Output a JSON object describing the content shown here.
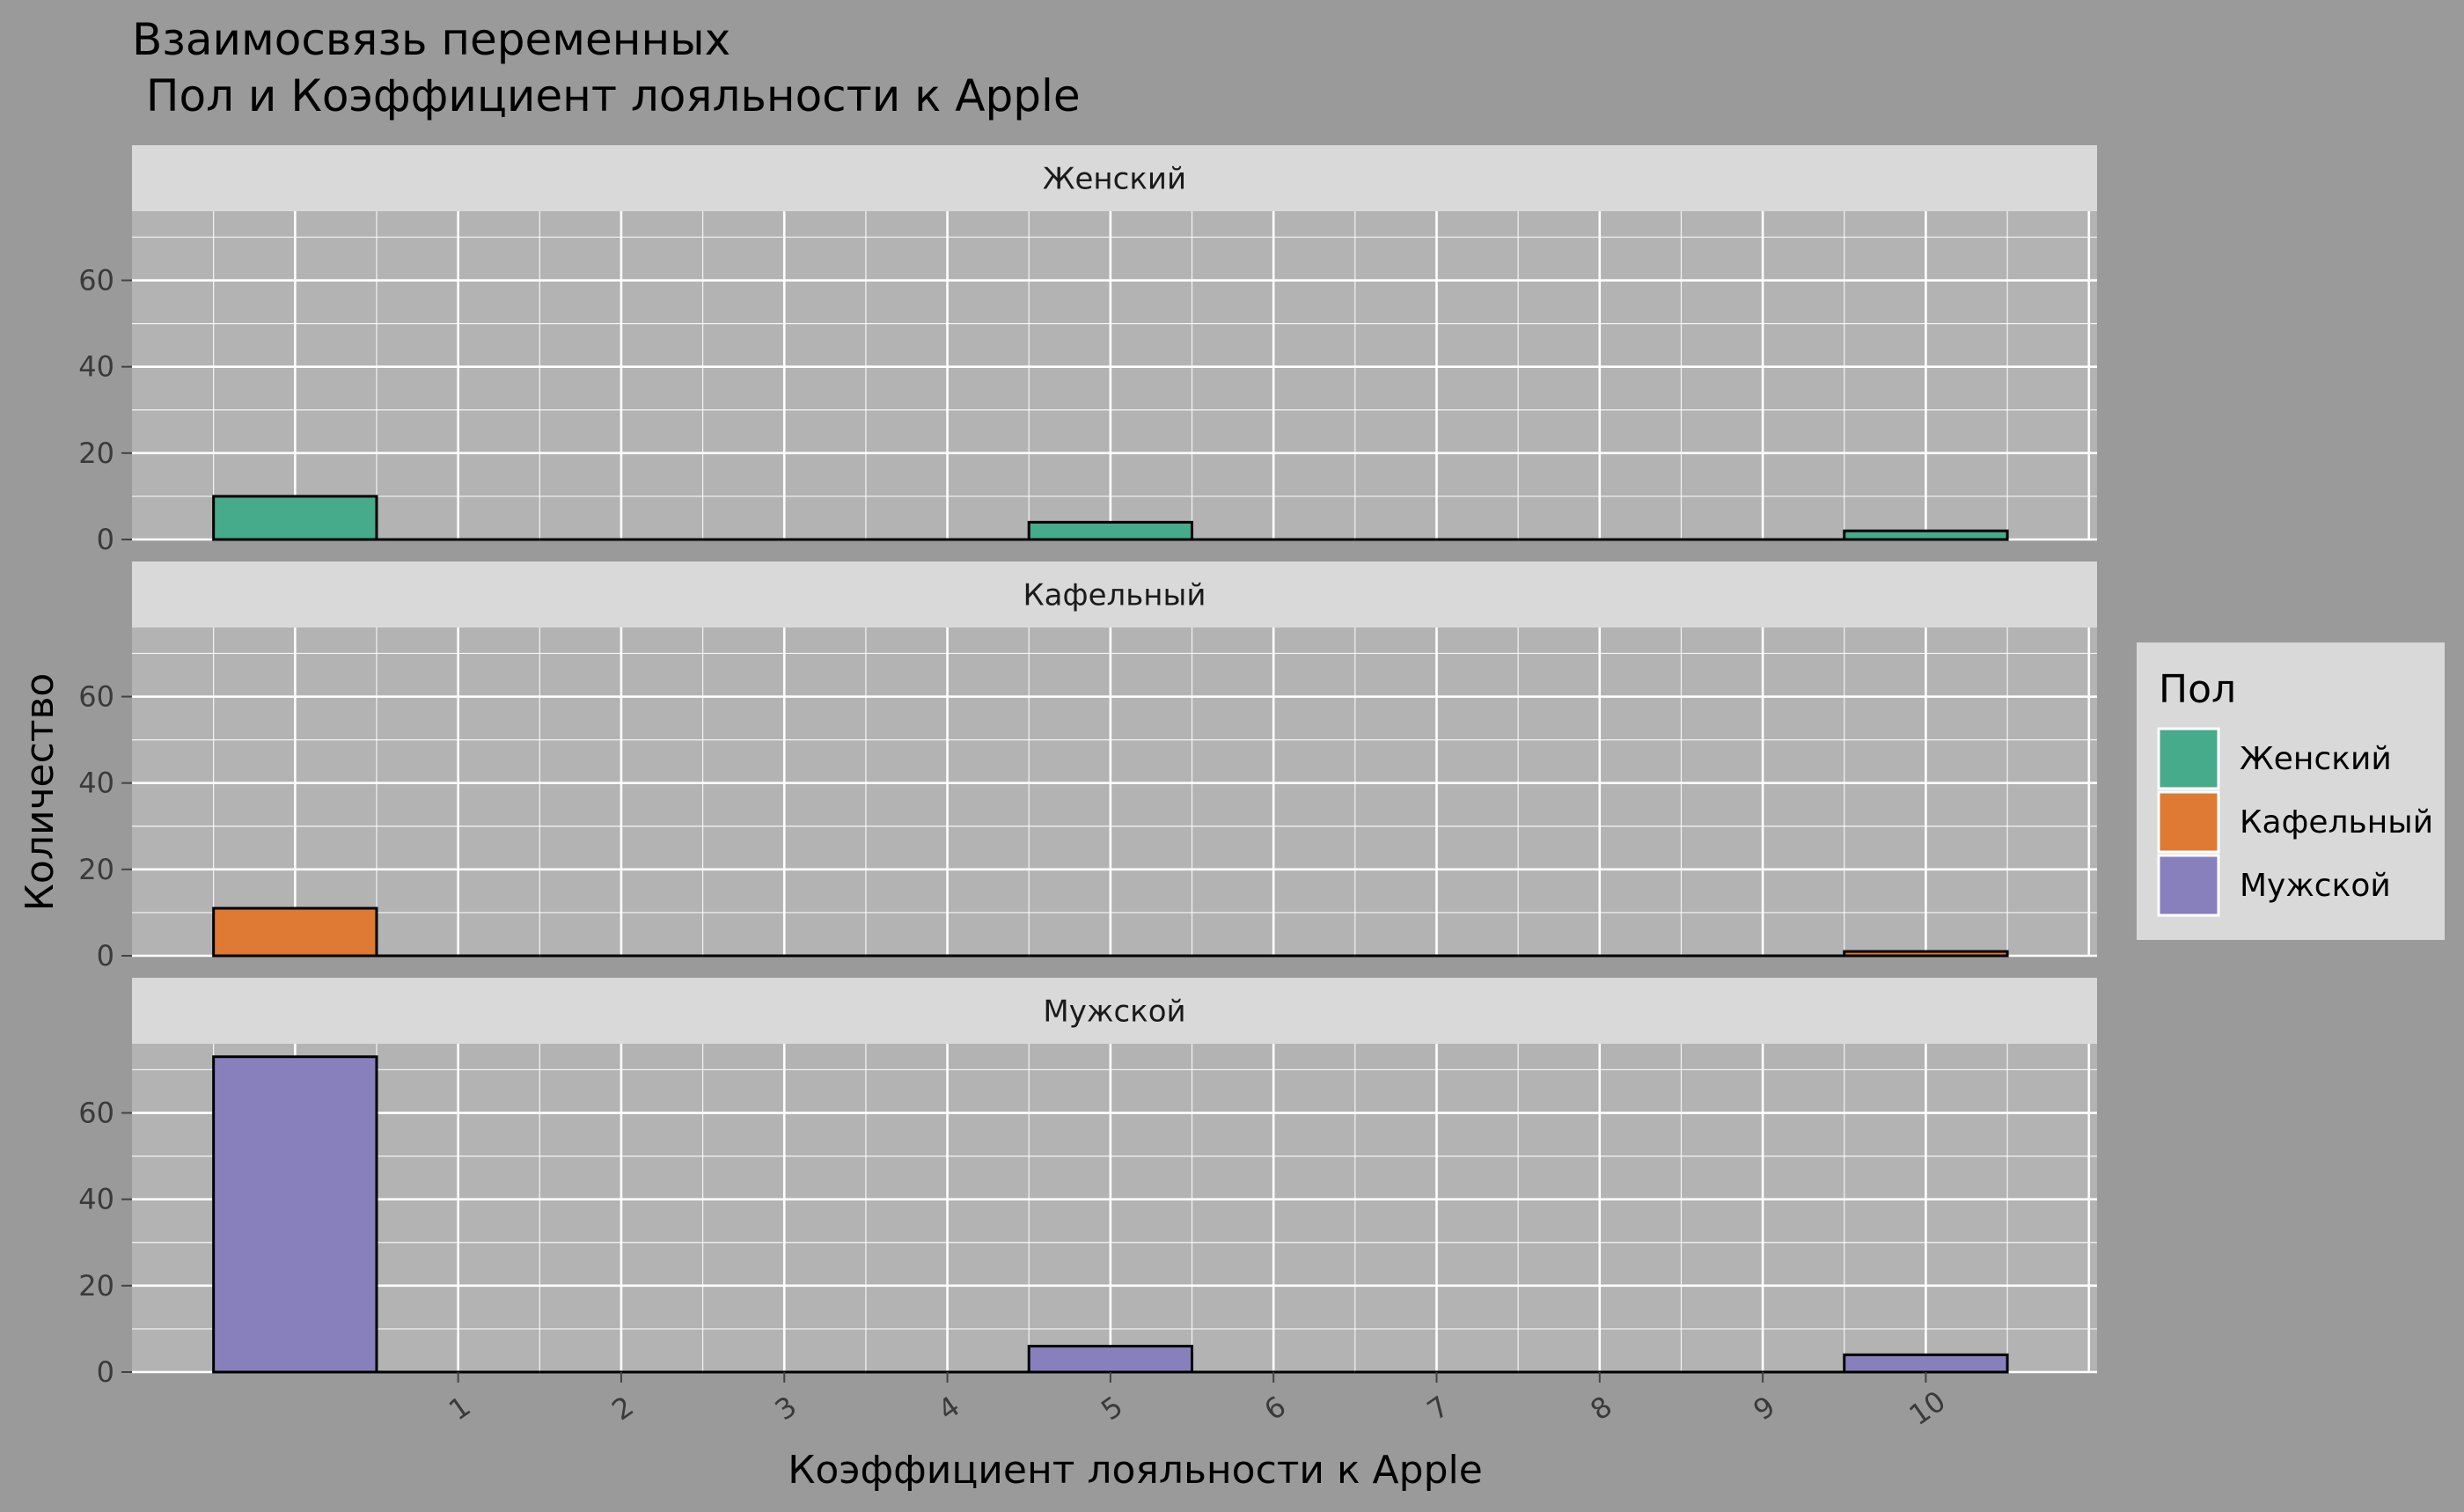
{
  "chart_data": {
    "type": "bar",
    "title_line1": "Взаимосвязь переменных",
    "title_line2": " Пол и Коэффициент лояльности к Apple",
    "xlabel": "Коэффициент лояльности к Apple",
    "ylabel": "Количество",
    "x_ticks": [
      "1",
      "2",
      "3",
      "4",
      "5",
      "6",
      "7",
      "8",
      "9",
      "10"
    ],
    "y_ticks": [
      "0",
      "20",
      "40",
      "60"
    ],
    "ylim": [
      0,
      76
    ],
    "bins": [
      {
        "from": -0.5,
        "to": 0.5
      },
      {
        "from": 0.5,
        "to": 1.5
      },
      {
        "from": 1.5,
        "to": 2.5
      },
      {
        "from": 2.5,
        "to": 3.5
      },
      {
        "from": 3.5,
        "to": 4.5
      },
      {
        "from": 4.5,
        "to": 5.5
      },
      {
        "from": 5.5,
        "to": 6.5
      },
      {
        "from": 6.5,
        "to": 7.5
      },
      {
        "from": 7.5,
        "to": 8.5
      },
      {
        "from": 8.5,
        "to": 9.5
      },
      {
        "from": 9.5,
        "to": 10.5
      }
    ],
    "series": [
      {
        "name": "Женский",
        "color": "#45ab8b",
        "values": [
          10,
          0,
          0,
          0,
          0,
          4,
          0,
          0,
          0,
          0,
          2
        ]
      },
      {
        "name": "Кафельный",
        "color": "#de7a33",
        "values": [
          11,
          0,
          0,
          0,
          0,
          0,
          0,
          0,
          0,
          0,
          1
        ]
      },
      {
        "name": "Мужской",
        "color": "#8780bd",
        "values": [
          73,
          0,
          0,
          0,
          0,
          6,
          0,
          0,
          0,
          0,
          4
        ]
      }
    ],
    "legend": {
      "title": "Пол",
      "position": "right"
    },
    "grid": true
  }
}
